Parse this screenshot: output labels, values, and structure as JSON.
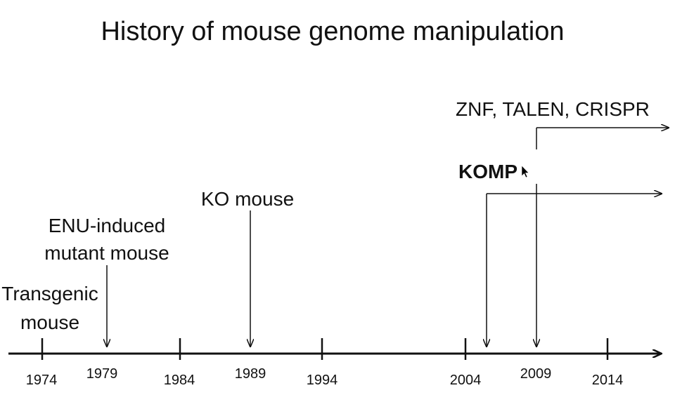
{
  "slide": {
    "title": "History of mouse genome manipulation"
  },
  "timeline": {
    "years": [
      "1974",
      "1979",
      "1984",
      "1989",
      "1994",
      "2004",
      "2009",
      "2014"
    ],
    "events": {
      "transgenic_line1": "Transgenic",
      "transgenic_line2": "mouse",
      "enu_line1": "ENU-induced",
      "enu_line2": "mutant mouse",
      "ko_mouse": "KO mouse",
      "komp": "KOMP",
      "genome_editing": "ZNF, TALEN, CRISPR"
    }
  },
  "icons": {
    "cursor": "mouse-pointer-icon"
  }
}
